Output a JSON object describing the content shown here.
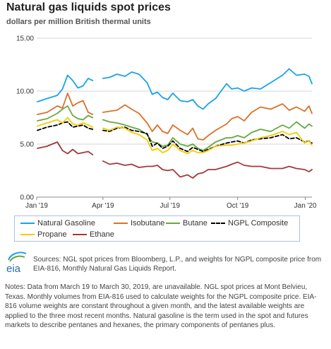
{
  "header": {
    "title": "Natural gas liquids spot prices",
    "subtitle": "dollars per million British thermal units"
  },
  "chart_data": {
    "type": "line",
    "x_axis": {
      "tick_labels": [
        "Jan '19",
        "Apr '19",
        "Jul '19",
        "Oct '19",
        "Jan '20"
      ],
      "range": [
        "2019-01-01",
        "2020-01-10"
      ]
    },
    "y_axis": {
      "tick_labels": [
        "0.00",
        "5.00",
        "10.00",
        "15.00"
      ],
      "ylim": [
        0,
        15
      ],
      "grid": true
    },
    "legend_placement": "bottom",
    "gaps": [
      [
        "2019-03-19",
        "2019-03-30"
      ]
    ],
    "series": [
      {
        "name": "Natural Gasoline",
        "color": "#1aa3e8",
        "style": "solid",
        "x": [
          "2019-01-02",
          "2019-01-15",
          "2019-01-29",
          "2019-02-05",
          "2019-02-12",
          "2019-02-19",
          "2019-02-26",
          "2019-03-05",
          "2019-03-12",
          "2019-03-18",
          "2019-04-01",
          "2019-04-10",
          "2019-04-20",
          "2019-05-01",
          "2019-05-10",
          "2019-05-20",
          "2019-05-31",
          "2019-06-07",
          "2019-06-14",
          "2019-06-21",
          "2019-06-28",
          "2019-07-05",
          "2019-07-15",
          "2019-07-25",
          "2019-08-01",
          "2019-08-08",
          "2019-08-15",
          "2019-08-22",
          "2019-09-01",
          "2019-09-16",
          "2019-09-23",
          "2019-10-01",
          "2019-10-10",
          "2019-10-20",
          "2019-11-01",
          "2019-11-15",
          "2019-12-01",
          "2019-12-10",
          "2019-12-20",
          "2019-12-31",
          "2020-01-06",
          "2020-01-10"
        ],
        "y": [
          9.0,
          9.3,
          9.6,
          10.2,
          11.5,
          11.0,
          10.3,
          10.5,
          11.2,
          11.0,
          11.2,
          11.3,
          11.6,
          11.4,
          11.8,
          11.6,
          10.8,
          9.7,
          9.9,
          9.4,
          9.2,
          9.8,
          9.1,
          9.0,
          9.2,
          8.6,
          8.3,
          8.8,
          9.3,
          10.7,
          10.2,
          10.3,
          10.0,
          10.3,
          10.2,
          10.8,
          11.5,
          12.1,
          11.5,
          11.6,
          11.4,
          10.7
        ]
      },
      {
        "name": "Isobutane",
        "color": "#d9722b",
        "style": "solid",
        "x": [
          "2019-01-02",
          "2019-01-15",
          "2019-01-29",
          "2019-02-05",
          "2019-02-12",
          "2019-02-19",
          "2019-02-26",
          "2019-03-05",
          "2019-03-12",
          "2019-03-18",
          "2019-04-01",
          "2019-04-10",
          "2019-04-20",
          "2019-05-01",
          "2019-05-10",
          "2019-05-20",
          "2019-05-31",
          "2019-06-07",
          "2019-06-14",
          "2019-06-21",
          "2019-06-28",
          "2019-07-05",
          "2019-07-15",
          "2019-07-25",
          "2019-08-01",
          "2019-08-08",
          "2019-08-15",
          "2019-08-22",
          "2019-09-01",
          "2019-09-16",
          "2019-09-23",
          "2019-10-01",
          "2019-10-10",
          "2019-10-20",
          "2019-11-01",
          "2019-11-15",
          "2019-12-01",
          "2019-12-10",
          "2019-12-20",
          "2019-12-31",
          "2020-01-06",
          "2020-01-10"
        ],
        "y": [
          7.8,
          8.0,
          8.6,
          8.4,
          9.8,
          8.6,
          8.9,
          9.1,
          8.0,
          7.8,
          8.0,
          8.1,
          8.2,
          8.7,
          8.3,
          7.9,
          7.0,
          6.2,
          6.8,
          6.2,
          6.0,
          6.8,
          6.3,
          5.9,
          6.5,
          5.5,
          5.4,
          5.8,
          6.3,
          6.9,
          7.4,
          7.6,
          7.2,
          8.0,
          8.5,
          8.3,
          8.8,
          8.2,
          8.5,
          8.1,
          8.6,
          7.9
        ]
      },
      {
        "name": "Butane",
        "color": "#66a840",
        "style": "solid",
        "x": [
          "2019-01-02",
          "2019-01-15",
          "2019-01-29",
          "2019-02-05",
          "2019-02-12",
          "2019-02-19",
          "2019-02-26",
          "2019-03-05",
          "2019-03-12",
          "2019-03-18",
          "2019-04-01",
          "2019-04-10",
          "2019-04-20",
          "2019-05-01",
          "2019-05-10",
          "2019-05-20",
          "2019-05-31",
          "2019-06-07",
          "2019-06-14",
          "2019-06-21",
          "2019-06-28",
          "2019-07-05",
          "2019-07-15",
          "2019-07-25",
          "2019-08-01",
          "2019-08-08",
          "2019-08-15",
          "2019-08-22",
          "2019-09-01",
          "2019-09-16",
          "2019-09-23",
          "2019-10-01",
          "2019-10-10",
          "2019-10-20",
          "2019-11-01",
          "2019-11-15",
          "2019-12-01",
          "2019-12-10",
          "2019-12-20",
          "2019-12-31",
          "2020-01-06",
          "2020-01-10"
        ],
        "y": [
          7.2,
          7.4,
          7.9,
          8.3,
          8.6,
          7.7,
          7.4,
          7.3,
          7.7,
          7.5,
          7.3,
          7.1,
          7.0,
          6.8,
          6.6,
          6.4,
          5.9,
          5.2,
          5.1,
          4.8,
          4.9,
          5.6,
          5.0,
          4.8,
          5.0,
          4.6,
          4.4,
          4.7,
          5.2,
          5.6,
          5.6,
          5.8,
          5.6,
          6.1,
          6.4,
          6.2,
          6.8,
          6.5,
          7.1,
          6.5,
          6.9,
          6.7
        ]
      },
      {
        "name": "NGPL Composite",
        "color": "#000000",
        "style": "dashed",
        "x": [
          "2019-01-02",
          "2019-01-15",
          "2019-01-29",
          "2019-02-05",
          "2019-02-12",
          "2019-02-19",
          "2019-02-26",
          "2019-03-05",
          "2019-03-12",
          "2019-03-18",
          "2019-04-01",
          "2019-04-10",
          "2019-04-20",
          "2019-05-01",
          "2019-05-10",
          "2019-05-20",
          "2019-05-31",
          "2019-06-07",
          "2019-06-14",
          "2019-06-21",
          "2019-06-28",
          "2019-07-05",
          "2019-07-15",
          "2019-07-25",
          "2019-08-01",
          "2019-08-08",
          "2019-08-15",
          "2019-08-22",
          "2019-09-01",
          "2019-09-16",
          "2019-09-23",
          "2019-10-01",
          "2019-10-10",
          "2019-10-20",
          "2019-11-01",
          "2019-11-15",
          "2019-12-01",
          "2019-12-10",
          "2019-12-20",
          "2019-12-31",
          "2020-01-06",
          "2020-01-10"
        ],
        "y": [
          6.3,
          6.6,
          6.8,
          7.0,
          7.1,
          6.6,
          6.7,
          6.8,
          6.5,
          6.4,
          6.3,
          6.2,
          6.5,
          6.6,
          6.3,
          6.2,
          6.0,
          4.8,
          5.1,
          4.6,
          4.8,
          5.3,
          4.6,
          4.3,
          4.7,
          4.5,
          4.3,
          4.5,
          4.8,
          5.1,
          5.2,
          5.3,
          5.1,
          5.4,
          5.5,
          5.6,
          5.9,
          5.5,
          5.6,
          5.2,
          5.3,
          5.1
        ]
      },
      {
        "name": "Propane",
        "color": "#f5cc00",
        "style": "solid",
        "x": [
          "2019-01-02",
          "2019-01-15",
          "2019-01-29",
          "2019-02-05",
          "2019-02-12",
          "2019-02-19",
          "2019-02-26",
          "2019-03-05",
          "2019-03-12",
          "2019-03-18",
          "2019-04-01",
          "2019-04-10",
          "2019-04-20",
          "2019-05-01",
          "2019-05-10",
          "2019-05-20",
          "2019-05-31",
          "2019-06-07",
          "2019-06-14",
          "2019-06-21",
          "2019-06-28",
          "2019-07-05",
          "2019-07-15",
          "2019-07-25",
          "2019-08-01",
          "2019-08-08",
          "2019-08-15",
          "2019-08-22",
          "2019-09-01",
          "2019-09-16",
          "2019-09-23",
          "2019-10-01",
          "2019-10-10",
          "2019-10-20",
          "2019-11-01",
          "2019-11-15",
          "2019-12-01",
          "2019-12-10",
          "2019-12-20",
          "2019-12-31",
          "2020-01-06",
          "2020-01-10"
        ],
        "y": [
          6.7,
          7.0,
          7.3,
          7.0,
          7.5,
          6.9,
          6.8,
          7.0,
          6.8,
          6.6,
          6.5,
          6.3,
          6.6,
          6.5,
          6.1,
          5.9,
          5.4,
          4.4,
          4.6,
          4.2,
          4.4,
          5.0,
          4.4,
          4.1,
          4.4,
          4.2,
          4.2,
          4.4,
          4.8,
          4.9,
          4.9,
          5.0,
          5.1,
          5.3,
          5.6,
          5.8,
          6.2,
          5.9,
          6.1,
          5.1,
          5.3,
          4.9
        ]
      },
      {
        "name": "Ethane",
        "color": "#a33a3a",
        "style": "solid",
        "x": [
          "2019-01-02",
          "2019-01-15",
          "2019-01-29",
          "2019-02-05",
          "2019-02-12",
          "2019-02-19",
          "2019-02-26",
          "2019-03-05",
          "2019-03-12",
          "2019-03-18",
          "2019-04-01",
          "2019-04-10",
          "2019-04-20",
          "2019-05-01",
          "2019-05-10",
          "2019-05-20",
          "2019-05-31",
          "2019-06-07",
          "2019-06-14",
          "2019-06-21",
          "2019-06-28",
          "2019-07-05",
          "2019-07-15",
          "2019-07-25",
          "2019-08-01",
          "2019-08-08",
          "2019-08-15",
          "2019-08-22",
          "2019-09-01",
          "2019-09-16",
          "2019-09-23",
          "2019-10-01",
          "2019-10-10",
          "2019-10-20",
          "2019-11-01",
          "2019-11-15",
          "2019-12-01",
          "2019-12-10",
          "2019-12-20",
          "2019-12-31",
          "2020-01-06",
          "2020-01-10"
        ],
        "y": [
          4.6,
          4.8,
          5.2,
          4.4,
          4.1,
          4.5,
          4.1,
          4.2,
          4.3,
          4.0,
          3.4,
          3.1,
          3.2,
          3.0,
          3.1,
          2.8,
          2.9,
          2.9,
          3.0,
          2.6,
          2.5,
          2.6,
          1.9,
          2.1,
          1.8,
          2.2,
          2.3,
          2.6,
          2.6,
          2.9,
          3.1,
          3.3,
          3.0,
          2.9,
          2.9,
          2.7,
          2.7,
          2.9,
          2.7,
          2.6,
          2.4,
          2.6
        ]
      }
    ]
  },
  "legend": {
    "items": [
      "Natural Gasoline",
      "Isobutane",
      "Butane",
      "NGPL Composite",
      "Propane",
      "Ethane"
    ]
  },
  "footer": {
    "logo_text": "eia",
    "sources": "Sources: NGL spot prices from Bloomberg, L.P., and weights for NGPL composite price from EIA-816, Monthly Natural Gas Liquids Report.",
    "notes": "Notes: Data from March 19 to March 30, 2019, are unavailable. NGL spot prices at Mont Belvieu, Texas. Monthly volumes from EIA-816 used to calculate weights for the NGPL composite price. EIA-816 volume weights are constant throughout a given month, and the latest available weights are applied to the three most recent months. Natural gasoline is the term used in the spot and futures markets to describe pentanes and hexanes, the primary components of pentanes plus."
  }
}
